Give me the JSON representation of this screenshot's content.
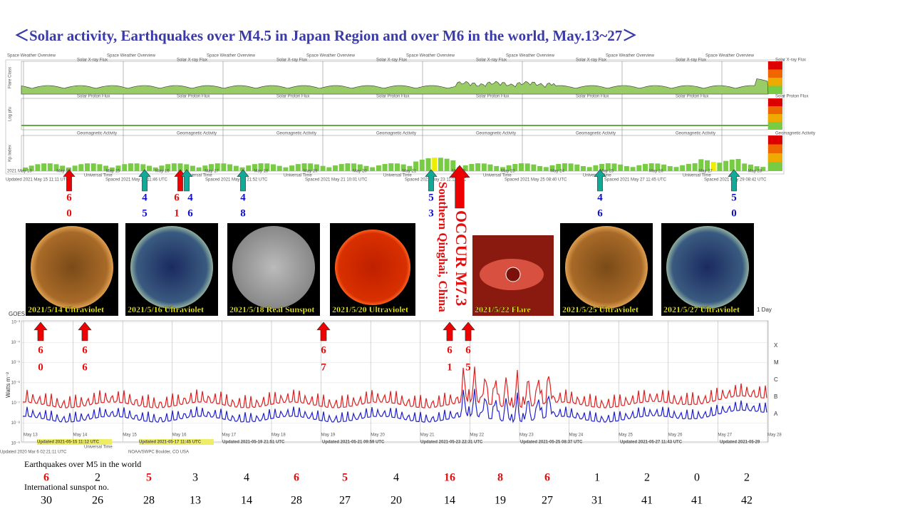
{
  "title": "＜Solar activity, Earthquakes over M4.5 in Japan Region and over M6 in the world,   May.13~27＞",
  "top_panel": {
    "header": [
      "Space Weather Overview",
      "Solar X-ray Flux"
    ],
    "strips": [
      "Solar Proton Flux",
      "Geomagnetic Activity"
    ],
    "axis_labels": [
      "Flare Class",
      "Log pfu",
      "Kp Index"
    ],
    "dates": [
      "2021 May 13",
      "May 14",
      "May 15",
      "May 16",
      "May 17",
      "May 18",
      "May 19",
      "May 20",
      "May 21",
      "May 22",
      "May 23",
      "May 24",
      "May 25",
      "May 26",
      "May 27",
      "May 28"
    ],
    "time_label": "Universal Time",
    "updated": [
      "Updated 2021 May 15 11:11 UTC",
      "Spaced 2021 May 17 11:46 UTC",
      "Spaced 2021 May 19 21:52 UTC",
      "Spaced 2021 May 21 10:01 UTC",
      "Spaced 2021 May 23 11:11 UTC",
      "Spaced 2021 May 25 08:40 UTC",
      "Spaced 2021 May 27 11:45 UTC",
      "Spaced 2021 May 29 08:42 UTC"
    ]
  },
  "top_arrows": [
    {
      "color": "red",
      "digits": [
        "6",
        "0"
      ]
    },
    {
      "color": "green",
      "digits": [
        "4",
        "5"
      ]
    },
    {
      "color": "red",
      "digits": [
        "6",
        "1"
      ]
    },
    {
      "color": "green",
      "digits": [
        "4",
        "6"
      ]
    },
    {
      "color": "green",
      "digits": [
        "4",
        "8"
      ]
    },
    {
      "color": "green",
      "digits": [
        "5",
        "3"
      ]
    },
    {
      "color": "green",
      "digits": [
        "4",
        "6"
      ]
    },
    {
      "color": "green",
      "digits": [
        "5",
        "0"
      ]
    }
  ],
  "major_event": {
    "title": "OCCUR M7.3",
    "place": "Southern Qinghai, China"
  },
  "images": [
    {
      "caption": "2021/5/14 Ultraviolet",
      "kind": "orange"
    },
    {
      "caption": "2021/5/16 Ultraviolet",
      "kind": "blue"
    },
    {
      "caption": "2021/5/18 Real Sunspot",
      "kind": "gray"
    },
    {
      "caption": "2021/5/20 Ultraviolet",
      "kind": "red"
    },
    {
      "caption": "2021/5/22 Flare",
      "kind": "flare"
    },
    {
      "caption": "2021/5/25 Ultraviolet",
      "kind": "orange"
    },
    {
      "caption": "2021/5/27 Ultraviolet",
      "kind": "blue"
    }
  ],
  "lower_arrows": [
    {
      "digits": [
        "6",
        "0"
      ]
    },
    {
      "digits": [
        "6",
        "6"
      ]
    },
    {
      "digits": [
        "6",
        "7"
      ]
    },
    {
      "digits": [
        "6",
        "1"
      ]
    },
    {
      "digits": [
        "6",
        "5"
      ]
    }
  ],
  "xray_plot": {
    "label": "GOES",
    "y_label": "Watts m⁻²",
    "y_ticks": [
      "10⁻³",
      "10⁻⁴",
      "10⁻⁵",
      "10⁻⁶",
      "10⁻⁷",
      "10⁻⁸",
      "10⁻⁹"
    ],
    "classes": [
      "X",
      "M",
      "C",
      "B",
      "A"
    ],
    "dates": [
      "May 13",
      "May 14",
      "May 15",
      "May 16",
      "May 17",
      "May 18",
      "May 19",
      "May 20",
      "May 21",
      "May 22",
      "May 23",
      "May 24",
      "May 25",
      "May 26",
      "May 27",
      "May 28"
    ],
    "time_label": "Universal Time",
    "zoom": "1 Day",
    "updated": [
      "Updated 2021-05-15 11:12 UTC",
      "Updated 2021-05-17 11:45 UTC",
      "Updated 2021-05-19 21:51 UTC",
      "Updated 2021-05-21 09:59 UTC",
      "Updated 2021-05-23 22:31 UTC",
      "Updated 2021-05-25 08:37 UTC",
      "Updated 2021-05-27 11:43 UTC",
      "Updated 2021-05-29"
    ],
    "footer": [
      "Updated 2020 Mar  6 02:21:11 UTC",
      "NOAA/SWPC Boulder, CO USA"
    ]
  },
  "table": {
    "row1_label": "Earthquakes over M5 in the world",
    "earthquakes": [
      6,
      2,
      5,
      3,
      4,
      6,
      5,
      4,
      16,
      8,
      6,
      1,
      2,
      0,
      2
    ],
    "highlighted": [
      true,
      false,
      true,
      false,
      false,
      true,
      true,
      false,
      true,
      true,
      true,
      false,
      false,
      false,
      false
    ],
    "highlight_color": "#e01010",
    "row2_label": "International sunspot no.",
    "sunspots": [
      30,
      26,
      28,
      13,
      14,
      28,
      27,
      20,
      14,
      19,
      27,
      31,
      41,
      41,
      42
    ]
  }
}
